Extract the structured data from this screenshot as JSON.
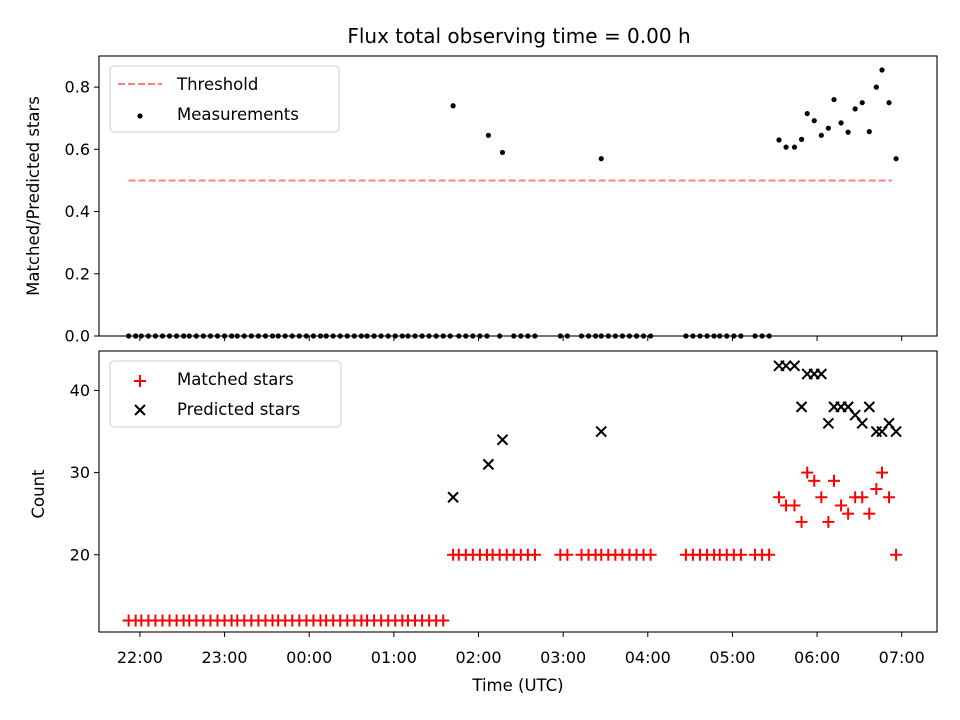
{
  "title": "Flux total observing time = 0.00 h",
  "chart_data": [
    {
      "type": "scatter",
      "ylabel": "Matched/Predicted stars",
      "xlabel": "",
      "xlim": [
        "21:31",
        "07:25"
      ],
      "ylim": [
        0,
        0.9
      ],
      "yticks": [
        0.0,
        0.2,
        0.4,
        0.6,
        0.8
      ],
      "ytick_labels": [
        "0.0",
        "0.2",
        "0.4",
        "0.6",
        "0.8"
      ],
      "xticks": [
        "22:00",
        "23:00",
        "00:00",
        "01:00",
        "02:00",
        "03:00",
        "04:00",
        "05:00",
        "06:00",
        "07:00"
      ],
      "grid": false,
      "legend_position": "upper-left",
      "threshold": {
        "name": "Threshold",
        "color": "#ff7f7f",
        "x_start": "21:52",
        "x_end": "06:53",
        "y": 0.5
      },
      "measurements": {
        "name": "Measurements",
        "color": "#000000",
        "points": [
          [
            "21:52",
            0
          ],
          [
            "21:57",
            0
          ],
          [
            "22:01",
            0
          ],
          [
            "22:06",
            0
          ],
          [
            "22:11",
            0
          ],
          [
            "22:16",
            0
          ],
          [
            "22:21",
            0
          ],
          [
            "22:26",
            0
          ],
          [
            "22:31",
            0
          ],
          [
            "22:35",
            0
          ],
          [
            "22:40",
            0
          ],
          [
            "22:45",
            0
          ],
          [
            "22:50",
            0
          ],
          [
            "22:55",
            0
          ],
          [
            "23:00",
            0
          ],
          [
            "23:05",
            0
          ],
          [
            "23:09",
            0
          ],
          [
            "23:14",
            0
          ],
          [
            "23:19",
            0
          ],
          [
            "23:24",
            0
          ],
          [
            "23:29",
            0
          ],
          [
            "23:34",
            0
          ],
          [
            "23:38",
            0
          ],
          [
            "23:43",
            0
          ],
          [
            "23:48",
            0
          ],
          [
            "23:53",
            0
          ],
          [
            "23:58",
            0
          ],
          [
            "00:03",
            0
          ],
          [
            "00:08",
            0
          ],
          [
            "00:12",
            0
          ],
          [
            "00:17",
            0
          ],
          [
            "00:22",
            0
          ],
          [
            "00:27",
            0
          ],
          [
            "00:32",
            0
          ],
          [
            "00:37",
            0
          ],
          [
            "00:41",
            0
          ],
          [
            "00:46",
            0
          ],
          [
            "00:51",
            0
          ],
          [
            "00:56",
            0
          ],
          [
            "01:01",
            0
          ],
          [
            "01:06",
            0
          ],
          [
            "01:10",
            0
          ],
          [
            "01:15",
            0
          ],
          [
            "01:20",
            0
          ],
          [
            "01:25",
            0
          ],
          [
            "01:30",
            0
          ],
          [
            "01:35",
            0
          ],
          [
            "01:40",
            0
          ],
          [
            "01:42",
            0.74
          ],
          [
            "01:46",
            0
          ],
          [
            "01:51",
            0
          ],
          [
            "01:56",
            0
          ],
          [
            "02:01",
            0
          ],
          [
            "02:06",
            0
          ],
          [
            "02:07",
            0.645
          ],
          [
            "02:15",
            0
          ],
          [
            "02:17",
            0.59
          ],
          [
            "02:25",
            0
          ],
          [
            "02:30",
            0
          ],
          [
            "02:35",
            0
          ],
          [
            "02:40",
            0
          ],
          [
            "02:58",
            0
          ],
          [
            "03:03",
            0
          ],
          [
            "03:13",
            0
          ],
          [
            "03:18",
            0
          ],
          [
            "03:23",
            0
          ],
          [
            "03:27",
            0
          ],
          [
            "03:27",
            0.57
          ],
          [
            "03:32",
            0
          ],
          [
            "03:37",
            0
          ],
          [
            "03:42",
            0
          ],
          [
            "03:47",
            0
          ],
          [
            "03:52",
            0
          ],
          [
            "03:57",
            0
          ],
          [
            "04:02",
            0
          ],
          [
            "04:27",
            0
          ],
          [
            "04:32",
            0
          ],
          [
            "04:37",
            0
          ],
          [
            "04:42",
            0
          ],
          [
            "04:47",
            0
          ],
          [
            "04:51",
            0
          ],
          [
            "04:56",
            0
          ],
          [
            "05:01",
            0
          ],
          [
            "05:06",
            0
          ],
          [
            "05:16",
            0
          ],
          [
            "05:21",
            0
          ],
          [
            "05:26",
            0
          ],
          [
            "05:33",
            0.63
          ],
          [
            "05:38",
            0.607
          ],
          [
            "05:44",
            0.607
          ],
          [
            "05:49",
            0.632
          ],
          [
            "05:53",
            0.715
          ],
          [
            "05:58",
            0.692
          ],
          [
            "06:03",
            0.645
          ],
          [
            "06:08",
            0.668
          ],
          [
            "06:12",
            0.76
          ],
          [
            "06:17",
            0.685
          ],
          [
            "06:22",
            0.655
          ],
          [
            "06:27",
            0.73
          ],
          [
            "06:32",
            0.75
          ],
          [
            "06:37",
            0.657
          ],
          [
            "06:42",
            0.8
          ],
          [
            "06:46",
            0.855
          ],
          [
            "06:51",
            0.75
          ],
          [
            "06:56",
            0.57
          ]
        ]
      }
    },
    {
      "type": "scatter",
      "ylabel": "Count",
      "xlabel": "Time (UTC)",
      "xlim": [
        "21:31",
        "07:25"
      ],
      "ylim": [
        10.6,
        44.8
      ],
      "yticks": [
        20,
        30,
        40
      ],
      "ytick_labels": [
        "20",
        "30",
        "40"
      ],
      "xticks": [
        "22:00",
        "23:00",
        "00:00",
        "01:00",
        "02:00",
        "03:00",
        "04:00",
        "05:00",
        "06:00",
        "07:00"
      ],
      "xtick_labels": [
        "22:00",
        "23:00",
        "00:00",
        "01:00",
        "02:00",
        "03:00",
        "04:00",
        "05:00",
        "06:00",
        "07:00"
      ],
      "grid": false,
      "legend_position": "upper-left",
      "series": [
        {
          "name": "Matched stars",
          "marker": "plus",
          "color": "#ff0000",
          "points": [
            [
              "21:52",
              12
            ],
            [
              "21:57",
              12
            ],
            [
              "22:01",
              12
            ],
            [
              "22:06",
              12
            ],
            [
              "22:11",
              12
            ],
            [
              "22:16",
              12
            ],
            [
              "22:21",
              12
            ],
            [
              "22:26",
              12
            ],
            [
              "22:31",
              12
            ],
            [
              "22:35",
              12
            ],
            [
              "22:40",
              12
            ],
            [
              "22:45",
              12
            ],
            [
              "22:50",
              12
            ],
            [
              "22:55",
              12
            ],
            [
              "23:00",
              12
            ],
            [
              "23:05",
              12
            ],
            [
              "23:09",
              12
            ],
            [
              "23:14",
              12
            ],
            [
              "23:19",
              12
            ],
            [
              "23:24",
              12
            ],
            [
              "23:29",
              12
            ],
            [
              "23:34",
              12
            ],
            [
              "23:38",
              12
            ],
            [
              "23:43",
              12
            ],
            [
              "23:48",
              12
            ],
            [
              "23:53",
              12
            ],
            [
              "23:58",
              12
            ],
            [
              "00:03",
              12
            ],
            [
              "00:08",
              12
            ],
            [
              "00:12",
              12
            ],
            [
              "00:17",
              12
            ],
            [
              "00:22",
              12
            ],
            [
              "00:27",
              12
            ],
            [
              "00:32",
              12
            ],
            [
              "00:37",
              12
            ],
            [
              "00:41",
              12
            ],
            [
              "00:46",
              12
            ],
            [
              "00:51",
              12
            ],
            [
              "00:56",
              12
            ],
            [
              "01:01",
              12
            ],
            [
              "01:06",
              12
            ],
            [
              "01:10",
              12
            ],
            [
              "01:15",
              12
            ],
            [
              "01:20",
              12
            ],
            [
              "01:25",
              12
            ],
            [
              "01:30",
              12
            ],
            [
              "01:35",
              12
            ],
            [
              "01:42",
              20
            ],
            [
              "01:46",
              20
            ],
            [
              "01:51",
              20
            ],
            [
              "01:56",
              20
            ],
            [
              "02:01",
              20
            ],
            [
              "02:06",
              20
            ],
            [
              "02:10",
              20
            ],
            [
              "02:15",
              20
            ],
            [
              "02:20",
              20
            ],
            [
              "02:25",
              20
            ],
            [
              "02:30",
              20
            ],
            [
              "02:35",
              20
            ],
            [
              "02:40",
              20
            ],
            [
              "02:58",
              20
            ],
            [
              "03:03",
              20
            ],
            [
              "03:13",
              20
            ],
            [
              "03:18",
              20
            ],
            [
              "03:23",
              20
            ],
            [
              "03:27",
              20
            ],
            [
              "03:32",
              20
            ],
            [
              "03:37",
              20
            ],
            [
              "03:42",
              20
            ],
            [
              "03:47",
              20
            ],
            [
              "03:52",
              20
            ],
            [
              "03:57",
              20
            ],
            [
              "04:02",
              20
            ],
            [
              "04:27",
              20
            ],
            [
              "04:32",
              20
            ],
            [
              "04:37",
              20
            ],
            [
              "04:42",
              20
            ],
            [
              "04:47",
              20
            ],
            [
              "04:51",
              20
            ],
            [
              "04:56",
              20
            ],
            [
              "05:01",
              20
            ],
            [
              "05:06",
              20
            ],
            [
              "05:16",
              20
            ],
            [
              "05:21",
              20
            ],
            [
              "05:26",
              20
            ],
            [
              "05:33",
              27
            ],
            [
              "05:38",
              26
            ],
            [
              "05:44",
              26
            ],
            [
              "05:49",
              24
            ],
            [
              "05:53",
              30
            ],
            [
              "05:58",
              29
            ],
            [
              "06:03",
              27
            ],
            [
              "06:08",
              24
            ],
            [
              "06:12",
              29
            ],
            [
              "06:17",
              26
            ],
            [
              "06:22",
              25
            ],
            [
              "06:27",
              27
            ],
            [
              "06:32",
              27
            ],
            [
              "06:37",
              25
            ],
            [
              "06:42",
              28
            ],
            [
              "06:46",
              30
            ],
            [
              "06:51",
              27
            ],
            [
              "06:56",
              20
            ]
          ]
        },
        {
          "name": "Predicted stars",
          "marker": "x",
          "color": "#000000",
          "points": [
            [
              "01:42",
              27
            ],
            [
              "02:07",
              31
            ],
            [
              "02:17",
              34
            ],
            [
              "03:27",
              35
            ],
            [
              "05:33",
              43
            ],
            [
              "05:38",
              43
            ],
            [
              "05:44",
              43
            ],
            [
              "05:49",
              38
            ],
            [
              "05:53",
              42
            ],
            [
              "05:58",
              42
            ],
            [
              "06:03",
              42
            ],
            [
              "06:08",
              36
            ],
            [
              "06:12",
              38
            ],
            [
              "06:17",
              38
            ],
            [
              "06:22",
              38
            ],
            [
              "06:27",
              37
            ],
            [
              "06:32",
              36
            ],
            [
              "06:37",
              38
            ],
            [
              "06:42",
              35
            ],
            [
              "06:46",
              35
            ],
            [
              "06:51",
              36
            ],
            [
              "06:56",
              35
            ]
          ]
        }
      ]
    }
  ]
}
